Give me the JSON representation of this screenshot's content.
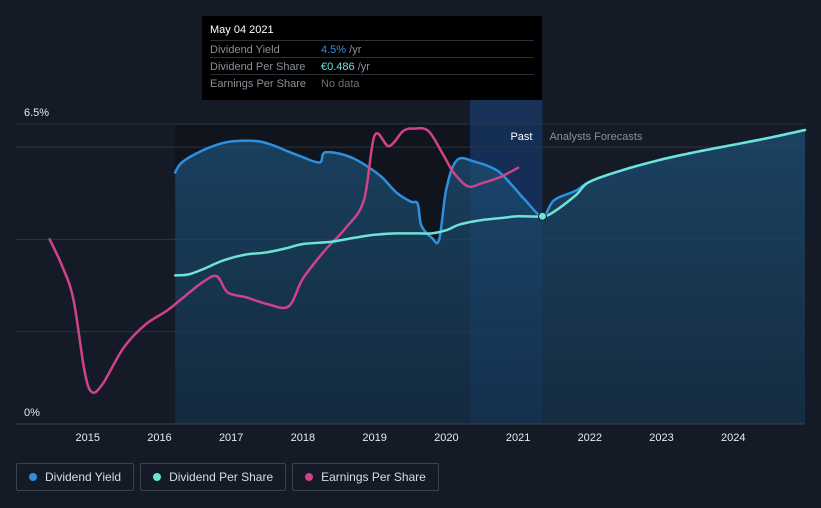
{
  "tooltip": {
    "date": "May 04 2021",
    "rows": [
      {
        "label": "Dividend Yield",
        "value": "4.5%",
        "unit": " /yr",
        "color": "#2d8fe0"
      },
      {
        "label": "Dividend Per Share",
        "value": "€0.486",
        "unit": " /yr",
        "color": "#6de3d6"
      },
      {
        "label": "Earnings Per Share",
        "value": "No data",
        "unit": "",
        "color": "#6b717a"
      }
    ]
  },
  "legend": [
    {
      "label": "Dividend Yield",
      "color": "#2d8fe0"
    },
    {
      "label": "Dividend Per Share",
      "color": "#6de3d6"
    },
    {
      "label": "Earnings Per Share",
      "color": "#d0438a"
    }
  ],
  "chart_data": {
    "type": "line",
    "title": "",
    "xlabel": "",
    "ylabel": "",
    "xlim": [
      2014.0,
      2025.0
    ],
    "ylim": [
      0,
      6.5
    ],
    "y_tick_labels": [
      {
        "value": 6.5,
        "label": "6.5%"
      },
      {
        "value": 0,
        "label": "0%"
      }
    ],
    "x_tick_labels": [
      "2015",
      "2016",
      "2017",
      "2018",
      "2019",
      "2020",
      "2021",
      "2022",
      "2023",
      "2024"
    ],
    "gridlines_y": [
      6.5,
      6.0,
      4.0,
      2.0
    ],
    "regions": [
      {
        "label": "Past",
        "from": 2016.22,
        "to": 2021.34
      },
      {
        "label": "Analysts Forecasts",
        "from": 2021.34,
        "to": 2025.0
      }
    ],
    "highlight_band": {
      "from": 2020.33,
      "to": 2021.34
    },
    "marker": {
      "x": 2021.34,
      "y": 4.5
    },
    "series": [
      {
        "name": "Dividend Yield",
        "color": "#2d8fe0",
        "area": true,
        "x": [
          2016.22,
          2016.3,
          2016.5,
          2016.8,
          2017.0,
          2017.2,
          2017.4,
          2017.6,
          2017.8,
          2018.0,
          2018.15,
          2018.25,
          2018.3,
          2018.5,
          2018.7,
          2018.9,
          2019.1,
          2019.3,
          2019.5,
          2019.6,
          2019.65,
          2019.8,
          2019.9,
          2020.0,
          2020.15,
          2020.4,
          2020.7,
          2020.9,
          2021.1,
          2021.34,
          2021.5,
          2021.8,
          2022.0,
          2022.5,
          2023.0,
          2023.5,
          2024.0,
          2024.5,
          2025.0
        ],
        "y": [
          5.45,
          5.65,
          5.85,
          6.05,
          6.12,
          6.14,
          6.12,
          6.03,
          5.9,
          5.78,
          5.69,
          5.68,
          5.88,
          5.86,
          5.76,
          5.58,
          5.35,
          5.02,
          4.82,
          4.77,
          4.3,
          4.03,
          4.0,
          5.1,
          5.72,
          5.68,
          5.5,
          5.2,
          4.85,
          4.5,
          4.85,
          5.05,
          5.25,
          5.52,
          5.73,
          5.9,
          6.05,
          6.2,
          6.37
        ]
      },
      {
        "name": "Dividend Per Share",
        "color": "#6de3d6",
        "area": false,
        "x": [
          2016.22,
          2016.4,
          2016.6,
          2016.9,
          2017.2,
          2017.5,
          2017.8,
          2018.0,
          2018.4,
          2018.7,
          2019.0,
          2019.3,
          2019.6,
          2019.8,
          2020.0,
          2020.2,
          2020.5,
          2020.8,
          2021.0,
          2021.34,
          2021.5,
          2021.8,
          2022.0,
          2022.5,
          2023.0,
          2023.5,
          2024.0,
          2024.5,
          2025.0
        ],
        "y": [
          3.22,
          3.24,
          3.35,
          3.55,
          3.67,
          3.72,
          3.82,
          3.9,
          3.95,
          4.03,
          4.1,
          4.13,
          4.13,
          4.13,
          4.2,
          4.33,
          4.42,
          4.47,
          4.5,
          4.5,
          4.6,
          4.95,
          5.25,
          5.52,
          5.73,
          5.9,
          6.05,
          6.2,
          6.37
        ]
      },
      {
        "name": "Earnings Per Share",
        "color": "#d0438a",
        "area": false,
        "x": [
          2014.47,
          2014.65,
          2014.8,
          2014.95,
          2015.05,
          2015.2,
          2015.5,
          2015.8,
          2016.1,
          2016.3,
          2016.6,
          2016.8,
          2016.95,
          2017.2,
          2017.5,
          2017.8,
          2018.0,
          2018.3,
          2018.6,
          2018.85,
          2019.0,
          2019.2,
          2019.4,
          2019.55,
          2019.75,
          2019.95,
          2020.1,
          2020.3,
          2020.5,
          2020.75,
          2021.0
        ],
        "y": [
          4.0,
          3.4,
          2.7,
          1.2,
          0.7,
          0.85,
          1.65,
          2.15,
          2.45,
          2.7,
          3.07,
          3.2,
          2.85,
          2.75,
          2.6,
          2.55,
          3.15,
          3.75,
          4.25,
          4.85,
          6.25,
          6.02,
          6.35,
          6.4,
          6.35,
          5.85,
          5.45,
          5.15,
          5.22,
          5.35,
          5.55
        ]
      }
    ]
  }
}
